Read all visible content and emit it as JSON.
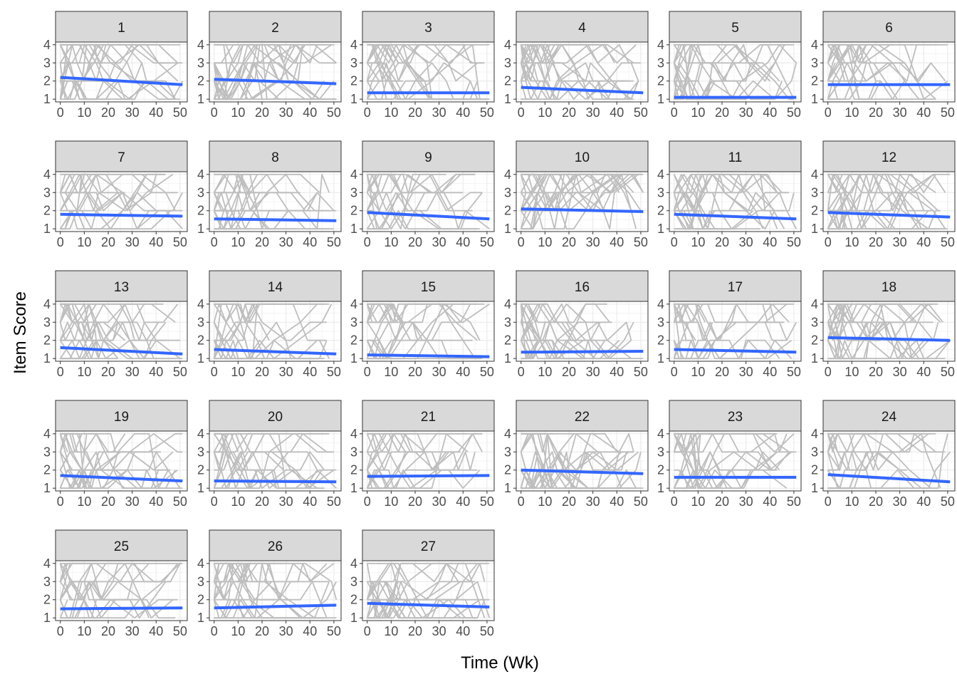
{
  "chart_data": {
    "type": "line",
    "layout": "facet-grid",
    "xlabel": "Time (Wk)",
    "ylabel": "Item Score",
    "xlim": [
      -2,
      53
    ],
    "ylim": [
      0.85,
      4.15
    ],
    "x_ticks": [
      "0",
      "10",
      "20",
      "30",
      "40",
      "50"
    ],
    "x_tick_values": [
      0,
      10,
      20,
      30,
      40,
      50
    ],
    "y_ticks": [
      "1",
      "2",
      "3",
      "4"
    ],
    "y_tick_values": [
      1,
      2,
      3,
      4
    ],
    "grid": true,
    "colors": {
      "trend": "#3366FF",
      "individual": "#BEBEBE",
      "strip": "#D9D9D9",
      "grid": "#EBEBEB"
    },
    "series_description": "grey lines = individual subjects, blue line = linear trend",
    "panels": [
      {
        "label": "1",
        "trend": [
          [
            0,
            2.2
          ],
          [
            51,
            1.8
          ]
        ]
      },
      {
        "label": "2",
        "trend": [
          [
            0,
            2.1
          ],
          [
            51,
            1.85
          ]
        ]
      },
      {
        "label": "3",
        "trend": [
          [
            0,
            1.35
          ],
          [
            51,
            1.35
          ]
        ]
      },
      {
        "label": "4",
        "trend": [
          [
            0,
            1.65
          ],
          [
            51,
            1.35
          ]
        ]
      },
      {
        "label": "5",
        "trend": [
          [
            0,
            1.1
          ],
          [
            51,
            1.1
          ]
        ]
      },
      {
        "label": "6",
        "trend": [
          [
            0,
            1.8
          ],
          [
            51,
            1.8
          ]
        ]
      },
      {
        "label": "7",
        "trend": [
          [
            0,
            1.8
          ],
          [
            51,
            1.7
          ]
        ]
      },
      {
        "label": "8",
        "trend": [
          [
            0,
            1.55
          ],
          [
            51,
            1.45
          ]
        ]
      },
      {
        "label": "9",
        "trend": [
          [
            0,
            1.9
          ],
          [
            51,
            1.55
          ]
        ]
      },
      {
        "label": "10",
        "trend": [
          [
            0,
            2.1
          ],
          [
            51,
            1.95
          ]
        ]
      },
      {
        "label": "11",
        "trend": [
          [
            0,
            1.8
          ],
          [
            51,
            1.55
          ]
        ]
      },
      {
        "label": "12",
        "trend": [
          [
            0,
            1.9
          ],
          [
            51,
            1.65
          ]
        ]
      },
      {
        "label": "13",
        "trend": [
          [
            0,
            1.6
          ],
          [
            51,
            1.25
          ]
        ]
      },
      {
        "label": "14",
        "trend": [
          [
            0,
            1.5
          ],
          [
            51,
            1.25
          ]
        ]
      },
      {
        "label": "15",
        "trend": [
          [
            0,
            1.2
          ],
          [
            51,
            1.1
          ]
        ]
      },
      {
        "label": "16",
        "trend": [
          [
            0,
            1.35
          ],
          [
            51,
            1.4
          ]
        ]
      },
      {
        "label": "17",
        "trend": [
          [
            0,
            1.5
          ],
          [
            51,
            1.35
          ]
        ]
      },
      {
        "label": "18",
        "trend": [
          [
            0,
            2.15
          ],
          [
            51,
            2.0
          ]
        ]
      },
      {
        "label": "19",
        "trend": [
          [
            0,
            1.7
          ],
          [
            51,
            1.4
          ]
        ]
      },
      {
        "label": "20",
        "trend": [
          [
            0,
            1.4
          ],
          [
            51,
            1.35
          ]
        ]
      },
      {
        "label": "21",
        "trend": [
          [
            0,
            1.65
          ],
          [
            51,
            1.7
          ]
        ]
      },
      {
        "label": "22",
        "trend": [
          [
            0,
            2.0
          ],
          [
            51,
            1.8
          ]
        ]
      },
      {
        "label": "23",
        "trend": [
          [
            0,
            1.6
          ],
          [
            51,
            1.6
          ]
        ]
      },
      {
        "label": "24",
        "trend": [
          [
            0,
            1.75
          ],
          [
            51,
            1.35
          ]
        ]
      },
      {
        "label": "25",
        "trend": [
          [
            0,
            1.5
          ],
          [
            51,
            1.55
          ]
        ]
      },
      {
        "label": "26",
        "trend": [
          [
            0,
            1.55
          ],
          [
            51,
            1.7
          ]
        ]
      },
      {
        "label": "27",
        "trend": [
          [
            0,
            1.8
          ],
          [
            51,
            1.6
          ]
        ]
      }
    ]
  }
}
